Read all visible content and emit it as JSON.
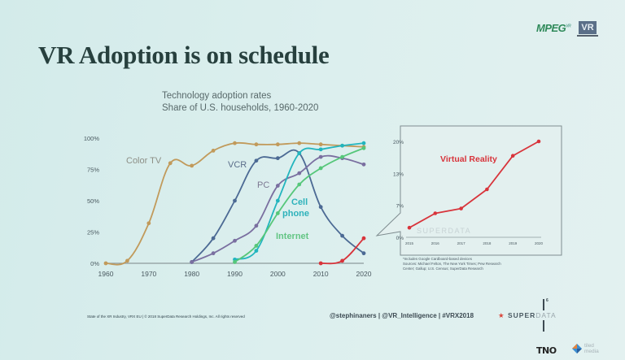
{
  "slide": {
    "title": "VR Adoption is on schedule",
    "logos": {
      "mpeg": "MPEG",
      "mpeg_sup": "VR",
      "vr": "VR",
      "tno": "TNO",
      "tiled": "tiled",
      "tiled_sub": "media"
    },
    "footer_left": "State of the XR Industry, VRX EU | © 2018 SuperData Research Holdings, Inc. All rights reserved",
    "footer_handles": "@stephinaners | @VR_Intelligence | #VRX2018",
    "footer_brand": {
      "star": "★",
      "super": "SUPER",
      "data": "DATA"
    },
    "page_number": "6"
  },
  "chart_data": [
    {
      "type": "line",
      "title": "Technology adoption rates",
      "subtitle": "Share of U.S. households, 1960-2020",
      "xlabel": "",
      "ylabel": "",
      "x_ticks": [
        "1960",
        "1970",
        "1980",
        "1990",
        "2000",
        "2010",
        "2020"
      ],
      "y_ticks": [
        "0%",
        "25%",
        "50%",
        "75%",
        "100%"
      ],
      "xlim": [
        1960,
        2020
      ],
      "ylim": [
        0,
        100
      ],
      "grid": false,
      "series": [
        {
          "name": "Color TV",
          "color": "#c19a5b",
          "label_color": "#8d8f86",
          "x": [
            1960,
            1965,
            1970,
            1975,
            1980,
            1985,
            1990,
            1995,
            2000,
            2005,
            2010,
            2015,
            2020
          ],
          "values": [
            0,
            2,
            32,
            80,
            78,
            90,
            96,
            95,
            95,
            96,
            95,
            94,
            93
          ]
        },
        {
          "name": "VCR",
          "color": "#4c6a94",
          "label_color": "#5b6e8a",
          "x": [
            1980,
            1985,
            1990,
            1995,
            2000,
            2005,
            2010,
            2015,
            2020
          ],
          "values": [
            1,
            20,
            50,
            82,
            84,
            88,
            45,
            22,
            8
          ]
        },
        {
          "name": "PC",
          "color": "#7a6fa0",
          "label_color": "#7d7892",
          "x": [
            1980,
            1985,
            1990,
            1995,
            2000,
            2005,
            2010,
            2015,
            2020
          ],
          "values": [
            1,
            8,
            18,
            30,
            62,
            72,
            85,
            84,
            79
          ]
        },
        {
          "name": "Cell phone",
          "color": "#22b5be",
          "label_color": "#2eb2bb",
          "x": [
            1990,
            1995,
            2000,
            2005,
            2010,
            2015,
            2020
          ],
          "values": [
            3,
            10,
            50,
            88,
            91,
            94,
            96
          ]
        },
        {
          "name": "Internet",
          "color": "#56c77a",
          "label_color": "#63c584",
          "x": [
            1990,
            1995,
            2000,
            2005,
            2010,
            2015,
            2020
          ],
          "values": [
            1,
            14,
            40,
            63,
            76,
            85,
            92
          ]
        },
        {
          "name": "Virtual Reality",
          "color": "#d8343b",
          "label_color": "#d8343b",
          "x": [
            2010,
            2015,
            2020
          ],
          "values": [
            0,
            2,
            20
          ]
        }
      ],
      "annotations": [
        "Color TV",
        "VCR",
        "PC",
        "Cell",
        "phone",
        "Internet"
      ]
    },
    {
      "type": "line",
      "title": "Virtual Reality",
      "x_ticks": [
        "2015",
        "2016",
        "2017",
        "2018",
        "2019",
        "2020"
      ],
      "y_ticks": [
        "0%",
        "7%",
        "13%",
        "20%"
      ],
      "xlim": [
        2015,
        2020
      ],
      "ylim": [
        0,
        20
      ],
      "grid": false,
      "watermark": "SUPERDATA",
      "series": [
        {
          "name": "Virtual Reality",
          "color": "#d8343b",
          "x": [
            2015,
            2016,
            2017,
            2018,
            2019,
            2020
          ],
          "values": [
            2,
            5,
            6,
            10,
            17,
            20
          ]
        }
      ],
      "notes": [
        "*Includes Google Cardboard-based devices",
        "Sources: Michael Felton, The New York Times; Pew Research",
        "Center; Gallup; U.S. Census; SuperData Research"
      ]
    }
  ]
}
